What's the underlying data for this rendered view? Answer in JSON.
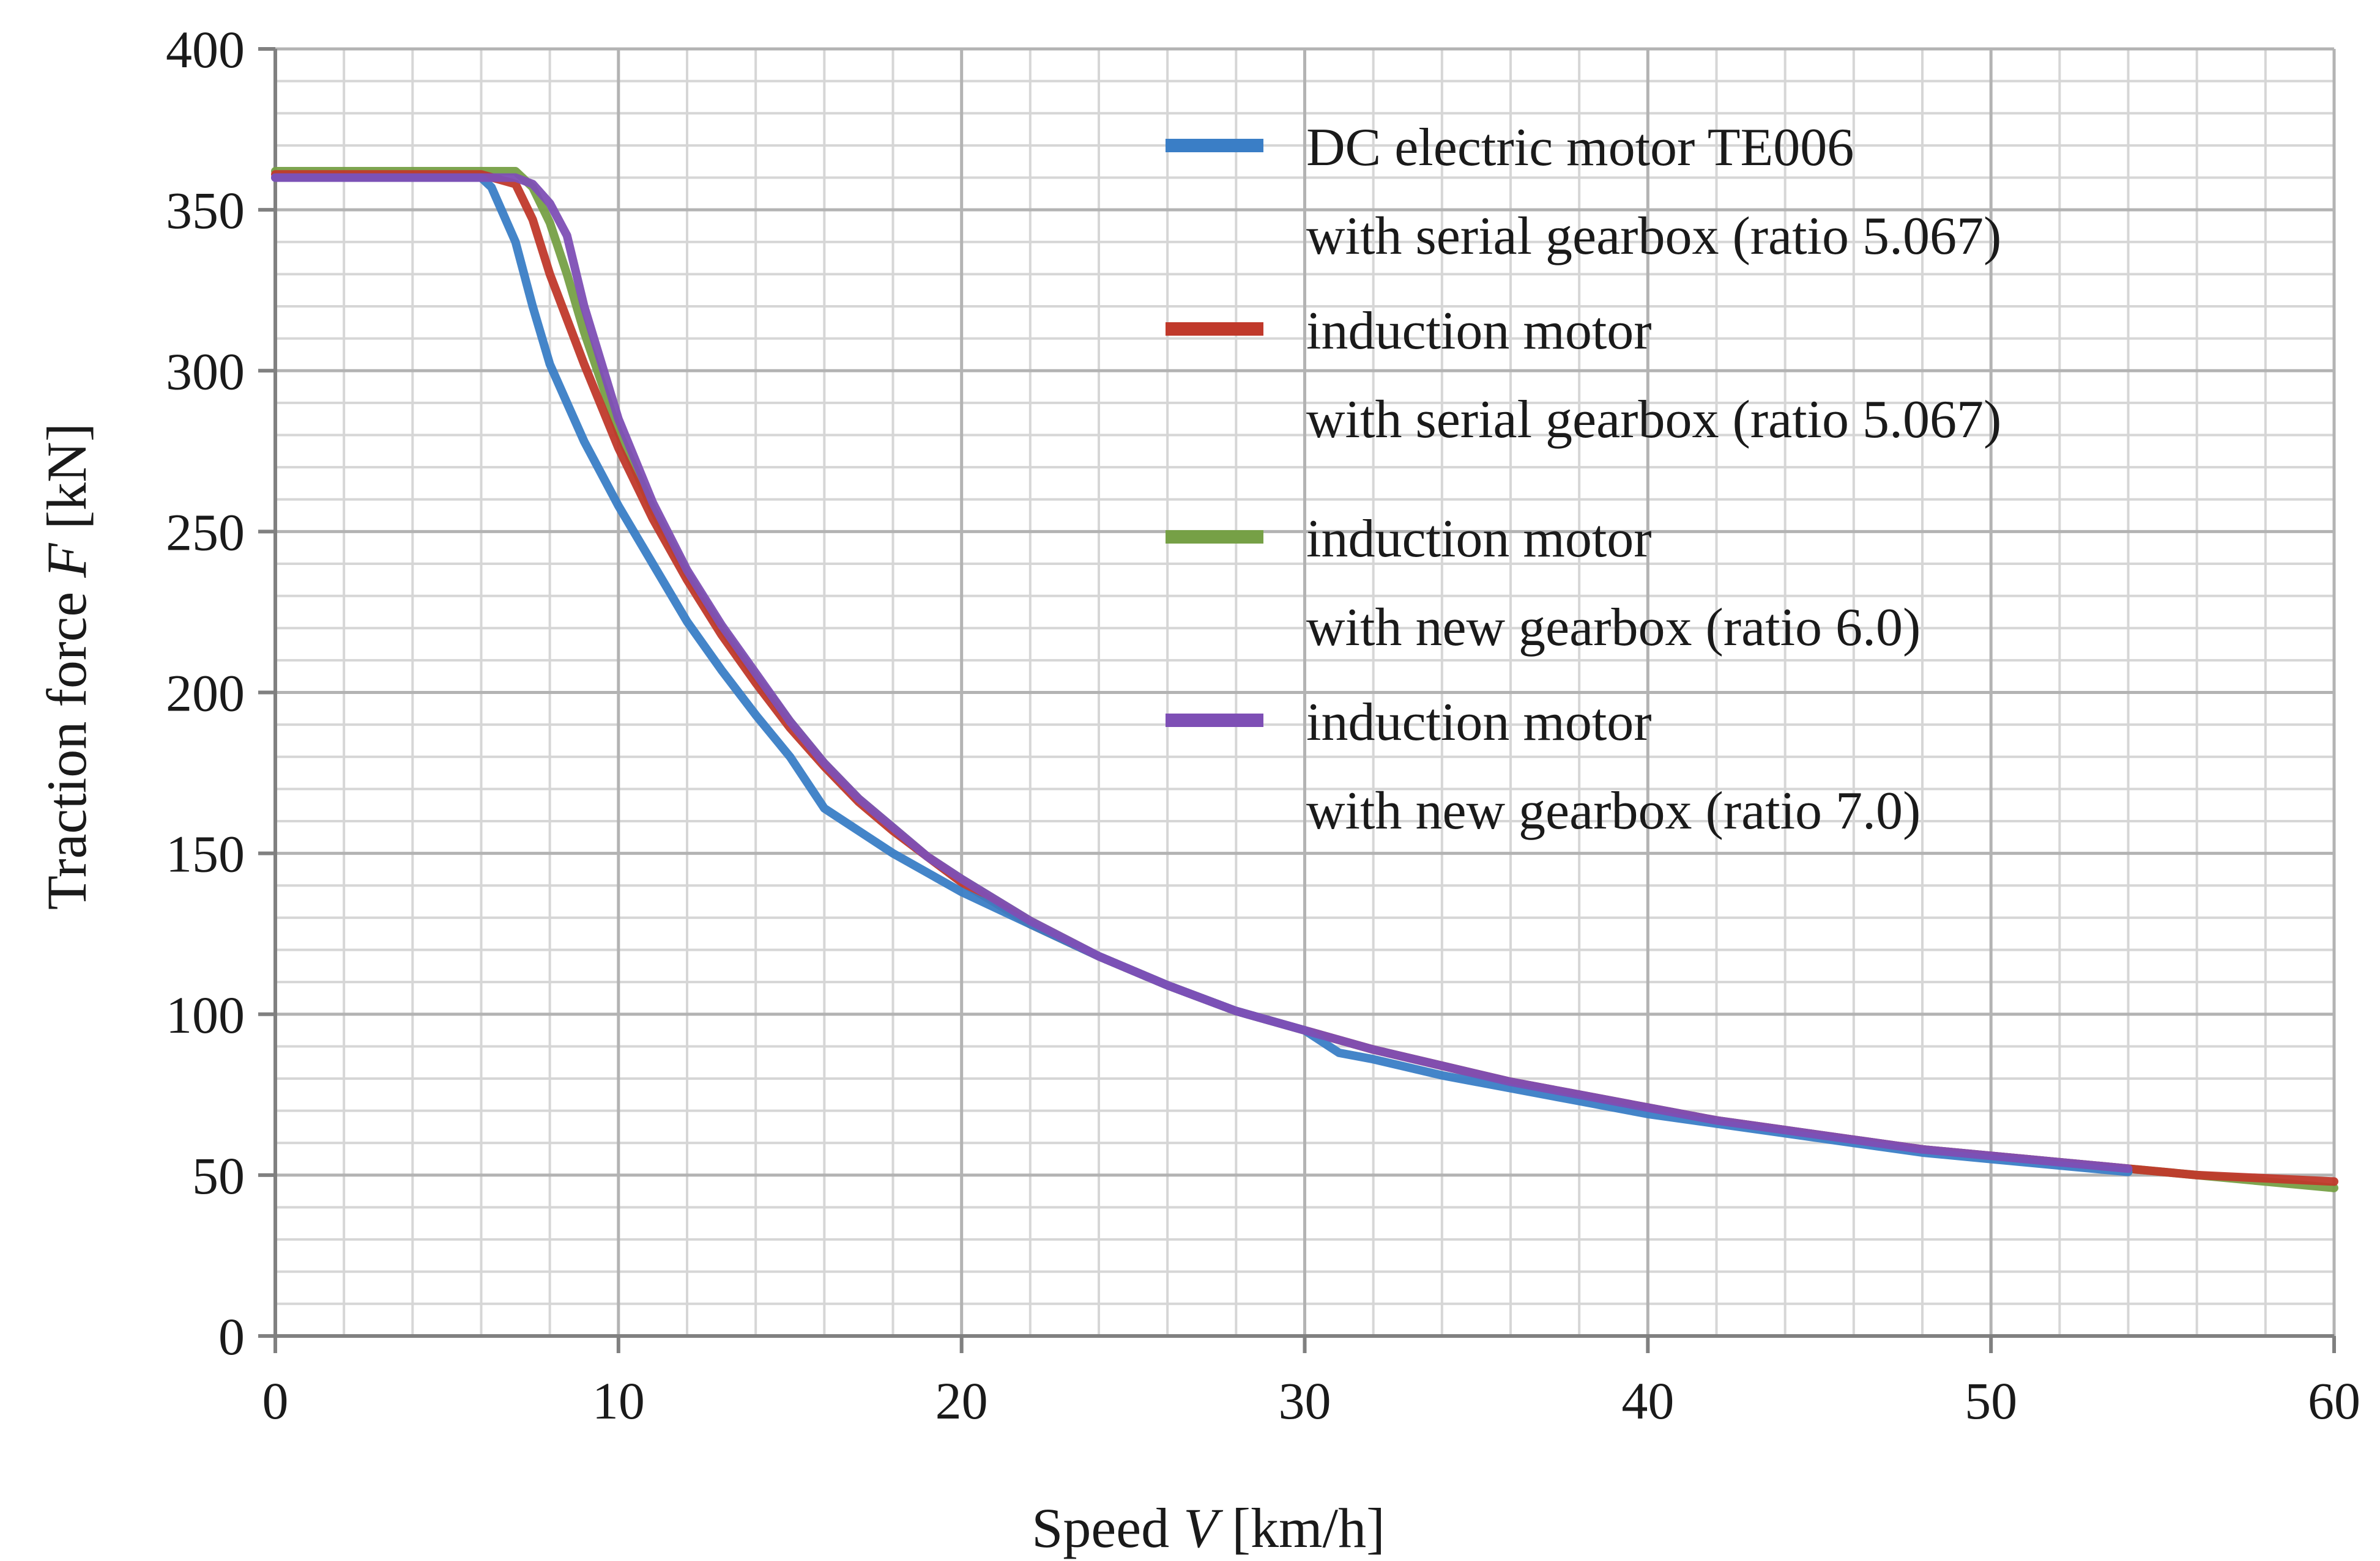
{
  "chart_data": {
    "type": "line",
    "title": "",
    "xlabel": {
      "prefix": "Speed ",
      "var": "V",
      "suffix": " [km/h]"
    },
    "ylabel": {
      "prefix": "Traction force ",
      "var": "F",
      "suffix": " [kN]"
    },
    "xlim": [
      0,
      60
    ],
    "ylim": [
      0,
      400
    ],
    "x_ticks": [
      0,
      10,
      20,
      30,
      40,
      50,
      60
    ],
    "y_ticks": [
      0,
      50,
      100,
      150,
      200,
      250,
      300,
      350,
      400
    ],
    "x_minor_step": 2,
    "y_minor_step": 10,
    "grid": true,
    "legend_position": "top-right",
    "series": [
      {
        "name": "DC electric motor TE006",
        "name_line2": "with serial gearbox (ratio 5.067)",
        "color": "#3a7ec6",
        "x": [
          0,
          2,
          4,
          6,
          6.3,
          7,
          7.5,
          8,
          8.5,
          9,
          10,
          11,
          12,
          13,
          14,
          15,
          16,
          17,
          18,
          19,
          20,
          22,
          24,
          26,
          28,
          30,
          31,
          32,
          34,
          36,
          38,
          40,
          42,
          44,
          46,
          48,
          50,
          52,
          54
        ],
        "y": [
          360,
          360,
          360,
          360,
          357,
          340,
          320,
          302,
          290,
          278,
          258,
          240,
          222,
          207,
          193,
          180,
          164,
          157,
          150,
          144,
          138,
          128,
          118,
          109,
          101,
          95,
          88,
          86,
          81,
          77,
          73,
          69,
          66,
          63,
          60,
          57,
          55,
          53,
          51
        ]
      },
      {
        "name": "induction motor",
        "name_line2": "with serial gearbox (ratio 5.067)",
        "color": "#c0392b",
        "x": [
          0,
          2,
          4,
          6,
          7,
          7.5,
          8,
          8.5,
          9,
          10,
          11,
          12,
          13,
          14,
          15,
          16,
          17,
          18,
          19,
          20,
          22,
          24,
          26,
          28,
          30,
          32,
          34,
          36,
          38,
          40,
          42,
          44,
          46,
          48,
          50,
          52,
          54,
          56,
          58,
          60
        ],
        "y": [
          361,
          361,
          361,
          361,
          358,
          347,
          330,
          316,
          302,
          276,
          254,
          235,
          218,
          203,
          189,
          177,
          166,
          157,
          149,
          141,
          128,
          118,
          109,
          101,
          95,
          89,
          84,
          79,
          75,
          71,
          67,
          64,
          61,
          58,
          56,
          54,
          52,
          50,
          49,
          48
        ]
      },
      {
        "name": "induction motor",
        "name_line2": "with new gearbox (ratio 6.0)",
        "color": "#76a046",
        "x": [
          0,
          2,
          4,
          6,
          7,
          7.5,
          8,
          8.5,
          9,
          10,
          11,
          12,
          13,
          14,
          15,
          16,
          17,
          18,
          19,
          20,
          22,
          24,
          26,
          28,
          30,
          32,
          34,
          36,
          38,
          40,
          42,
          44,
          46,
          48,
          50,
          52,
          54,
          56,
          58,
          60
        ],
        "y": [
          362,
          362,
          362,
          362,
          362,
          357,
          346,
          330,
          312,
          281,
          257,
          237,
          220,
          205,
          191,
          178,
          167,
          158,
          149,
          142,
          129,
          118,
          109,
          101,
          95,
          89,
          84,
          79,
          75,
          71,
          67,
          64,
          61,
          58,
          56,
          54,
          52,
          50,
          48,
          46
        ]
      },
      {
        "name": "induction motor",
        "name_line2": "with new gearbox (ratio 7.0)",
        "color": "#7e4fb5",
        "x": [
          0,
          2,
          4,
          6,
          7,
          7.5,
          8,
          8.5,
          9,
          10,
          11,
          12,
          13,
          14,
          15,
          16,
          17,
          18,
          19,
          20,
          22,
          24,
          26,
          28,
          30,
          32,
          34,
          36,
          38,
          40,
          42,
          44,
          46,
          48,
          50,
          52,
          54
        ],
        "y": [
          360,
          360,
          360,
          360,
          360,
          358,
          352,
          342,
          320,
          285,
          259,
          238,
          221,
          206,
          191,
          178,
          167,
          158,
          149,
          142,
          129,
          118,
          109,
          101,
          95,
          89,
          84,
          79,
          75,
          71,
          67,
          64,
          61,
          58,
          56,
          54,
          52
        ]
      }
    ]
  }
}
